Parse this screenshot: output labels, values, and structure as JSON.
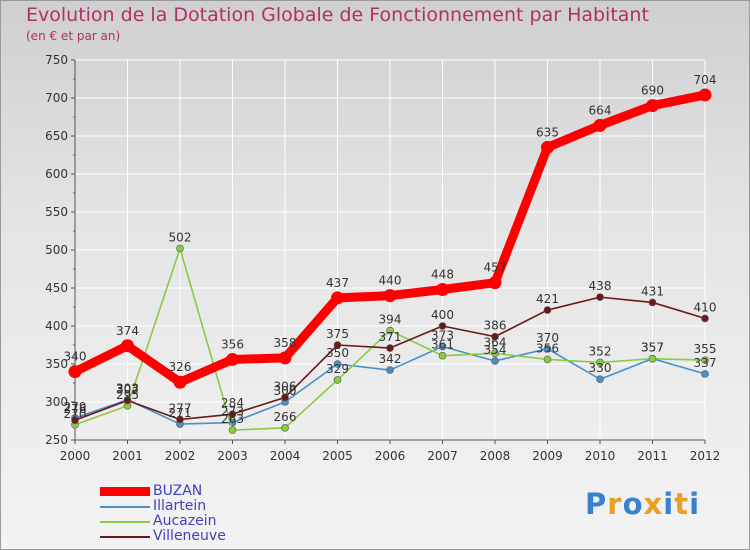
{
  "chart_data": {
    "type": "line",
    "title": "Evolution de la Dotation Globale de Fonctionnement par Habitant",
    "subtitle": "(en € et par an)",
    "xlabel": "",
    "ylabel": "",
    "categories": [
      "2000",
      "2001",
      "2002",
      "2003",
      "2004",
      "2005",
      "2006",
      "2007",
      "2008",
      "2009",
      "2010",
      "2011",
      "2012"
    ],
    "ylim": [
      250,
      750
    ],
    "yticks": [
      250,
      300,
      350,
      400,
      450,
      500,
      550,
      600,
      650,
      700,
      750
    ],
    "grid": true,
    "legend_position": "bottom-left",
    "series": [
      {
        "name": "BUZAN",
        "color": "#ff0000",
        "values": [
          340,
          374,
          326,
          356,
          358,
          437,
          440,
          448,
          457,
          635,
          664,
          690,
          704
        ]
      },
      {
        "name": "Illartein",
        "color": "#4a90c8",
        "values": [
          279,
          303,
          271,
          273,
          300,
          350,
          342,
          373,
          354,
          370,
          330,
          357,
          337
        ]
      },
      {
        "name": "Aucazein",
        "color": "#88cc44",
        "values": [
          270,
          295,
          502,
          263,
          266,
          329,
          394,
          361,
          364,
          356,
          352,
          357,
          355
        ]
      },
      {
        "name": "Villeneuve",
        "color": "#6b1a1a",
        "values": [
          276,
          302,
          277,
          284,
          306,
          375,
          371,
          400,
          386,
          421,
          438,
          431,
          410
        ]
      }
    ]
  },
  "logo": {
    "text": "Proxiti",
    "letters": [
      "P",
      "r",
      "o",
      "x",
      "i",
      "t",
      "i"
    ],
    "colors": [
      "#3a7fd0",
      "#e8a020",
      "#3a7fd0",
      "#e8a020",
      "#3a7fd0",
      "#e8a020",
      "#3a7fd0"
    ]
  }
}
